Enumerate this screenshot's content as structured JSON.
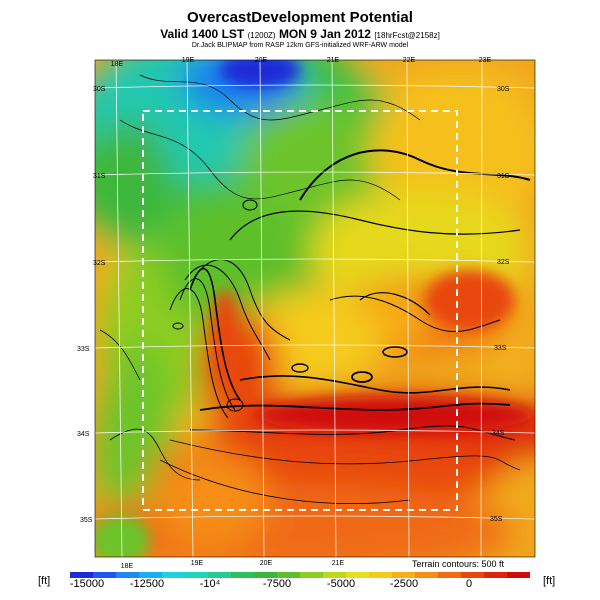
{
  "header": {
    "title": "OvercastDevelopment Potential",
    "subtitle_main": "Valid 1400 LST",
    "subtitle_small1": "(1200Z)",
    "subtitle_date": "MON 9 Jan 2012",
    "subtitle_small2": "[18hrFcst@2158z]",
    "credit": "Dr.Jack BLIPMAP from RASP 12km GFS-initialized WRF-ARW model"
  },
  "map": {
    "top_lon_labels": [
      "18E",
      "19E",
      "20E",
      "21E",
      "22E",
      "23E"
    ],
    "bottom_lon_labels": [
      "18E",
      "19E",
      "20E",
      "21E"
    ],
    "left_lat_labels": [
      "30S",
      "31S",
      "32S",
      "33S",
      "34S",
      "35S"
    ],
    "right_lat_labels": [
      "30S",
      "31S",
      "32S",
      "33S",
      "34S",
      "35S"
    ],
    "terrain_note": "Terrain contours: 500 ft"
  },
  "colorbar": {
    "unit_left": "[ft]",
    "unit_right": "[ft]",
    "labels": [
      "-15000",
      "-12500",
      "-10⁴",
      "-7500",
      "-5000",
      "-2500",
      "0"
    ],
    "range": [
      -15000,
      1500
    ],
    "colors": [
      "#1b2bd6",
      "#1f56f0",
      "#1f86f4",
      "#15b1f0",
      "#1ad3e0",
      "#20d6b8",
      "#26cd8c",
      "#2cc160",
      "#3cb63a",
      "#5dbf2c",
      "#8ccd23",
      "#bcd81c",
      "#e6e01a",
      "#f5cb1a",
      "#f7ae18",
      "#f58d15",
      "#f06a12",
      "#e8470f",
      "#df260c",
      "#d00c0a"
    ]
  }
}
